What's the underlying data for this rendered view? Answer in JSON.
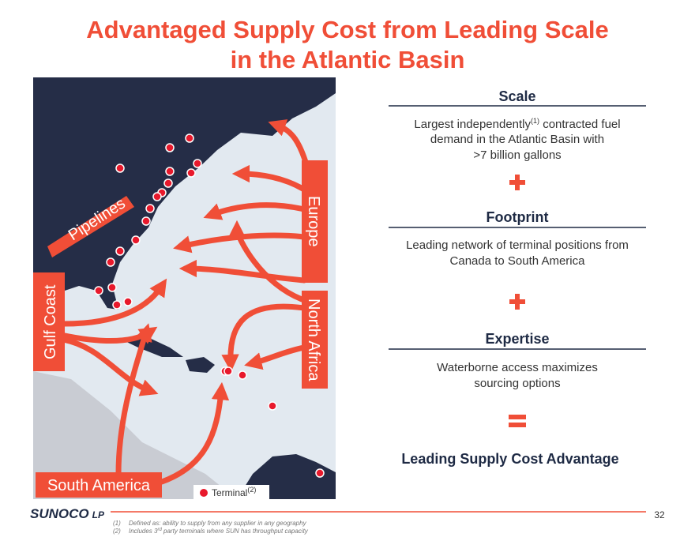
{
  "title": [
    "Advantaged Supply Cost from Leading Scale",
    "in the Atlantic Basin"
  ],
  "map": {
    "labels": {
      "europe": "Europe",
      "north_africa": "North Africa",
      "gulf_coast": "Gulf Coast",
      "pipelines": "Pipelines",
      "south_america": "South America"
    },
    "legend": {
      "label": "Terminal",
      "note": "(2)"
    }
  },
  "sections": [
    {
      "heading": "Scale",
      "lines": [
        [
          "Largest independently",
          "(1)",
          " contracted fuel"
        ],
        [
          "demand in the Atlantic Basin with"
        ],
        [
          ">7 billion gallons"
        ]
      ]
    },
    {
      "heading": "Footprint",
      "lines": [
        [
          "Leading network of terminal positions from"
        ],
        [
          "Canada to South America"
        ]
      ]
    },
    {
      "heading": "Expertise",
      "lines": [
        [
          "Waterborne access maximizes"
        ],
        [
          "sourcing options"
        ]
      ]
    }
  ],
  "conclusion": "Leading Supply Cost Advantage",
  "footer": {
    "logo": [
      "SUNOCO",
      "LP"
    ],
    "page": "32",
    "footnotes": [
      {
        "marker": "(1)",
        "parts": [
          "Defined as: ability to supply from any supplier in any geography"
        ]
      },
      {
        "marker": "(2)",
        "parts": [
          "Includes 3",
          "rd",
          " party terminals where SUN has throughput capacity"
        ]
      }
    ]
  }
}
